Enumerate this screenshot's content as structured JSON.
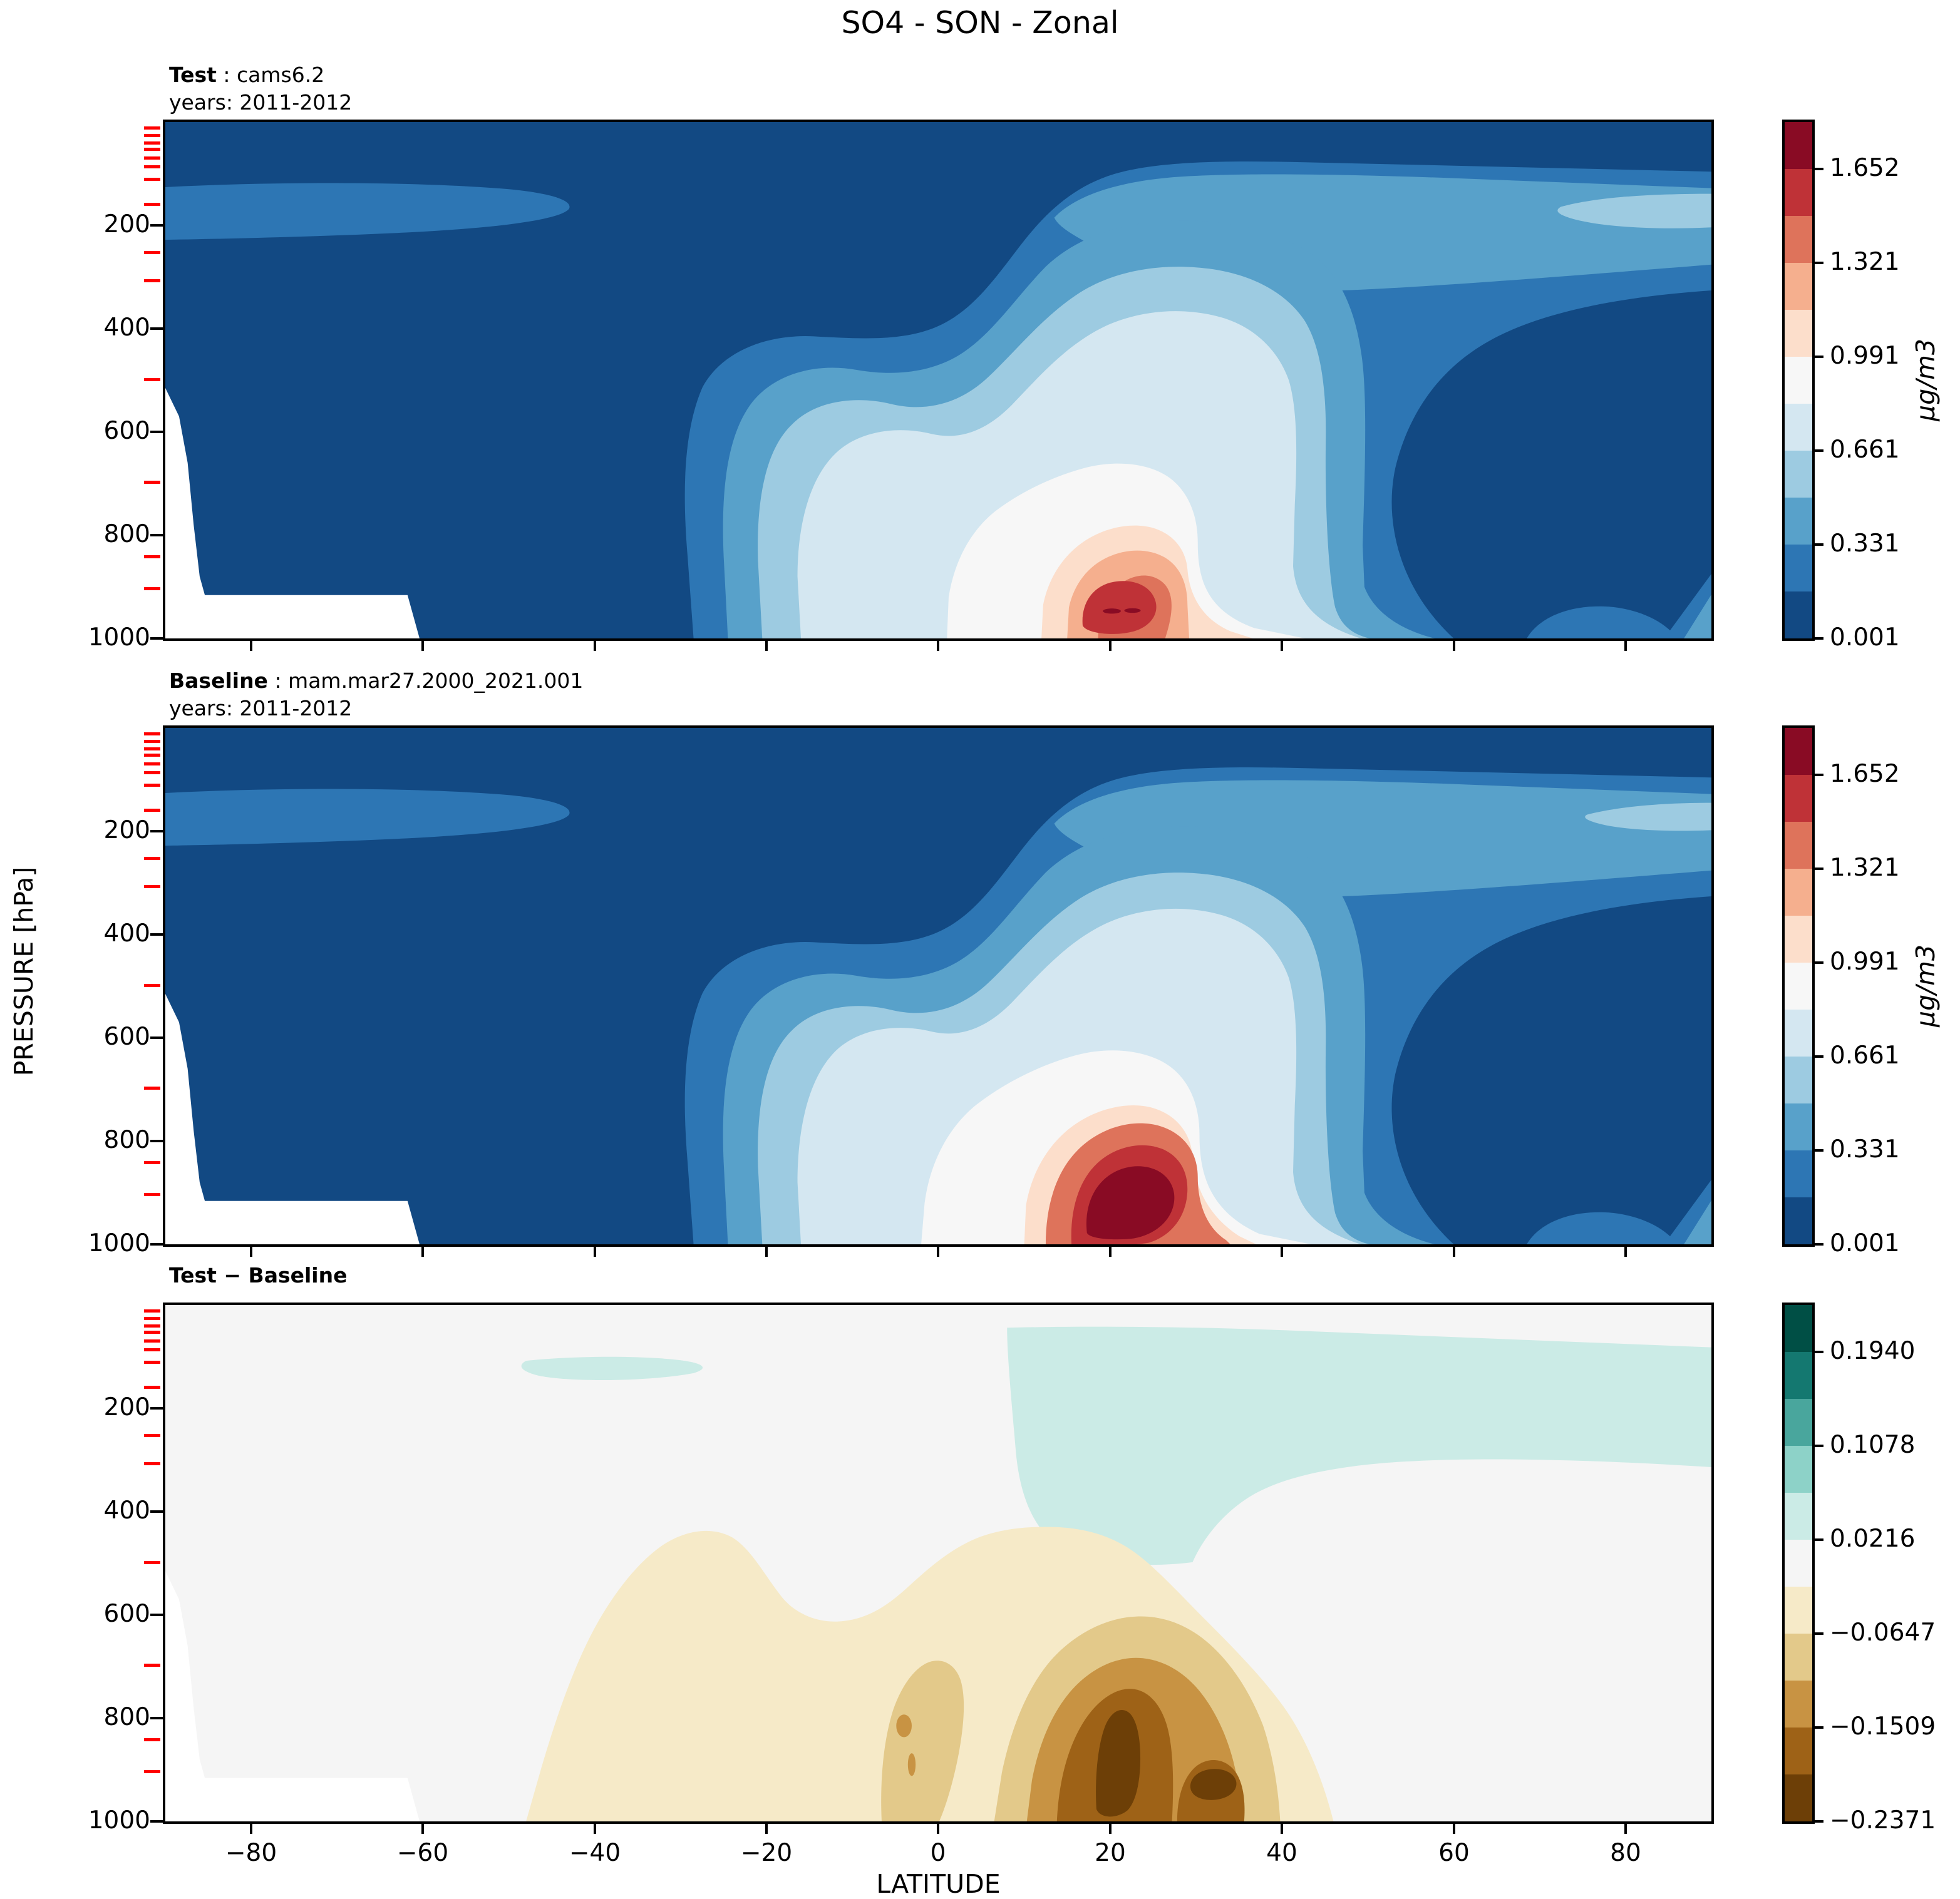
{
  "title": "SO4 - SON - Zonal",
  "panels": [
    {
      "name": "test",
      "label_bold": "Test",
      "label_rest": " : cams6.2",
      "years_line": "years: 2011-2012"
    },
    {
      "name": "baseline",
      "label_bold": "Baseline",
      "label_rest": " : mam.mar27.2000_2021.001",
      "years_line": "years: 2011-2012"
    },
    {
      "name": "difference",
      "label_bold": "Test − Baseline",
      "label_rest": "",
      "years_line": ""
    }
  ],
  "x_axis": {
    "label": "LATITUDE",
    "ticks": [
      "−80",
      "−60",
      "−40",
      "−20",
      "0",
      "20",
      "40",
      "60",
      "80"
    ]
  },
  "y_axis": {
    "label": "PRESSURE [hPa]",
    "ticks": [
      "200",
      "400",
      "600",
      "800",
      "1000"
    ]
  },
  "colorbar_concentration": {
    "unit": "µg/m3",
    "ticks": [
      "1.652",
      "1.321",
      "0.991",
      "0.661",
      "0.331",
      "0.001"
    ],
    "colors_bottom_to_top": [
      "#124983",
      "#2d76b4",
      "#58a1ca",
      "#9dcbe1",
      "#d4e7f1",
      "#f7f7f7",
      "#fcdecb",
      "#f5af8e",
      "#de735b",
      "#bf3237",
      "#890b24"
    ]
  },
  "colorbar_difference": {
    "unit": "",
    "ticks": [
      "0.1940",
      "0.1078",
      "0.0216",
      "−0.0647",
      "−0.1509",
      "−0.2371"
    ],
    "colors_bottom_to_top": [
      "#6d3f07",
      "#9e6217",
      "#c89343",
      "#e3c98a",
      "#f6eac8",
      "#f5f5f5",
      "#cbebe6",
      "#8dd2c8",
      "#49a69d",
      "#147870",
      "#004f45"
    ]
  },
  "mask_color": "#ffffff",
  "red_tick_color": "#ff0000",
  "chart_data": [
    {
      "type": "contour",
      "panel": "Test",
      "dataset": "cams6.2",
      "years": "2011-2012",
      "variable": "SO4",
      "season": "SON",
      "view": "zonal mean latitude-pressure cross-section",
      "xlabel": "LATITUDE",
      "ylabel": "PRESSURE [hPa]",
      "x_range_deg": [
        -90,
        90
      ],
      "y_range_hPa": [
        1000,
        0
      ],
      "unit": "µg/m3",
      "contour_levels": [
        0.001,
        0.166,
        0.331,
        0.496,
        0.661,
        0.826,
        0.991,
        1.156,
        1.321,
        1.486,
        1.652,
        1.817
      ],
      "colormap": "RdBu_r (11 filled bins)",
      "legend_position": "right colorbar",
      "features": [
        "most of domain in lowest bin (<0.166 µg/m3, dark blue)",
        "0.166-0.331 tongue at 130-230 hPa from 90S thinning out near 40S",
        "0.331-0.826 layer between ~90 and 330 hPa from 45N to 90N with 0.50-0.66 lens near 75-90N at 150-250 hPa",
        "broad boundary-layer plume from 25S to 45N below ~500 hPa peaking near 22N at ~900 hPa",
        "plume maximum reaches 1.49-1.65 bin with tiny >1.65 spots near 20-23N, ~920 hPa",
        "white terrain mask below ~930 hPa poleward of ~60S (Antarctica)"
      ]
    },
    {
      "type": "contour",
      "panel": "Baseline",
      "dataset": "mam.mar27.2000_2021.001",
      "years": "2011-2012",
      "variable": "SO4",
      "season": "SON",
      "view": "zonal mean latitude-pressure cross-section",
      "xlabel": "LATITUDE",
      "ylabel": "PRESSURE [hPa]",
      "x_range_deg": [
        -90,
        90
      ],
      "y_range_hPa": [
        1000,
        0
      ],
      "unit": "µg/m3",
      "contour_levels": [
        0.001,
        0.166,
        0.331,
        0.496,
        0.661,
        0.826,
        0.991,
        1.156,
        1.321,
        1.486,
        1.652,
        1.817
      ],
      "colormap": "RdBu_r (11 filled bins)",
      "legend_position": "right colorbar",
      "features": [
        "same overall structure as Test panel",
        "stronger plume: large >1.652 µg/m3 core (darkest red) near 17-28N between ~840 and 940 hPa",
        "upper-level SH tongue and 45-90N mid/upper layer nearly identical to Test",
        "white terrain mask below ~930 hPa poleward of ~60S"
      ]
    },
    {
      "type": "contour",
      "panel": "Test − Baseline",
      "variable": "SO4 difference",
      "season": "SON",
      "view": "zonal mean latitude-pressure cross-section",
      "xlabel": "LATITUDE",
      "ylabel": "PRESSURE [hPa]",
      "x_range_deg": [
        -90,
        90
      ],
      "y_range_hPa": [
        1000,
        0
      ],
      "unit": "µg/m3",
      "contour_levels": [
        -0.2371,
        -0.194,
        -0.1509,
        -0.1078,
        -0.0647,
        -0.0216,
        0.0216,
        0.0647,
        0.1078,
        0.1509,
        0.194,
        0.2371
      ],
      "colormap": "BrBG (11 filled bins)",
      "legend_position": "right colorbar",
      "features": [
        "mostly near zero (−0.02 to +0.02, neutral grey-white)",
        "positive 0.02-0.06 region aloft from ~8N to 90N between ~50 and 330 hPa, deepening to ~500 hPa around 10-40N",
        "small positive 0.02-0.06 lens near 48-27S at ~100-140 hPa",
        "negative anomalies below ~500 hPa from ~48S to 46N (test lower than baseline)",
        "strongest negative < −0.21 in narrow cores near 18-20N (~800-950 hPa) and ~30N (~900-950 hPa)",
        "secondary negative finger near 7-2S from ~700 hPa to surface",
        "white terrain mask below ~930 hPa poleward of ~60S"
      ]
    }
  ]
}
